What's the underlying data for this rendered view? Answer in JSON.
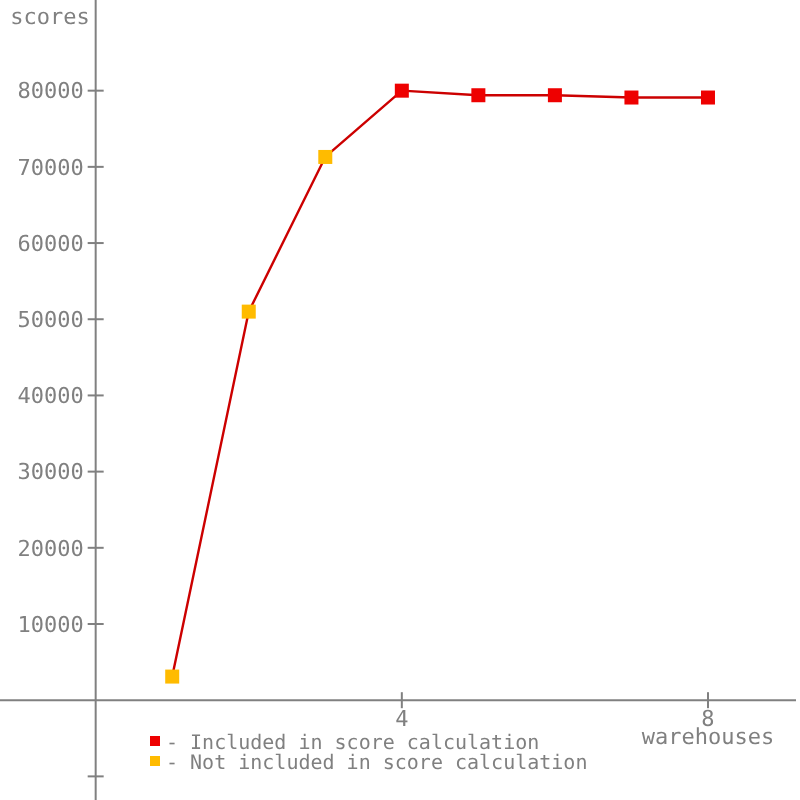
{
  "chart_data": {
    "type": "line",
    "xlabel": "warehouses",
    "ylabel": "scores",
    "xlim": [
      -1.25,
      9.15
    ],
    "ylim": [
      -13100,
      91900
    ],
    "xticks": [
      4,
      8
    ],
    "yticks": [
      {
        "value": -10000,
        "label": null
      },
      10000,
      20000,
      30000,
      40000,
      50000,
      60000,
      70000,
      80000
    ],
    "grid": false,
    "legend": "bottom left",
    "series": [
      {
        "color": "#cc0000",
        "marker": "none",
        "x": [
          1,
          2,
          3,
          4,
          5,
          6,
          7,
          8
        ],
        "values": [
          3100,
          51000,
          71300,
          80000,
          79400,
          79400,
          79100,
          79100
        ]
      },
      {
        "type": "scatter",
        "name": "- Included in score calculation",
        "color": "#ee0000",
        "marker": "square",
        "x": [
          4,
          5,
          6,
          7,
          8
        ],
        "values": [
          80000,
          79400,
          79400,
          79100,
          79100
        ]
      },
      {
        "type": "scatter",
        "name": "- Not included in score calculation",
        "color": "#ffbb00",
        "marker": "square",
        "x": [
          1,
          2,
          3
        ],
        "values": [
          3100,
          51000,
          71300
        ]
      }
    ]
  }
}
